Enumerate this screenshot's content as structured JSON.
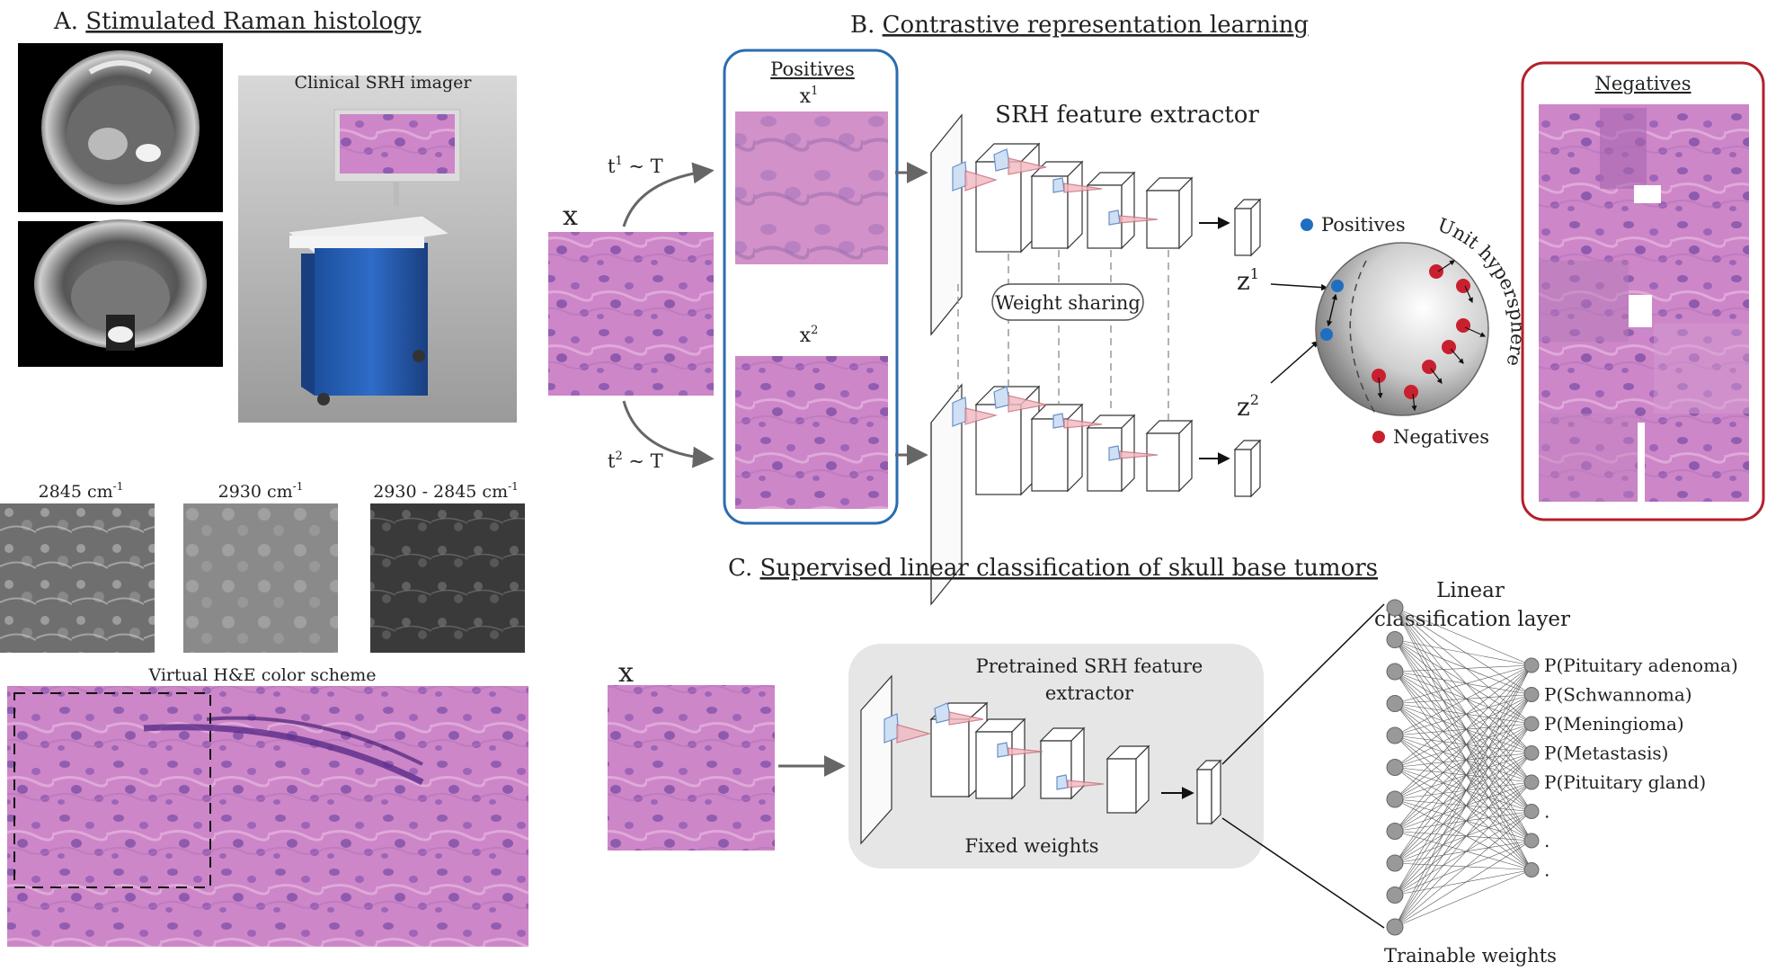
{
  "panelA": {
    "title_letter": "A.",
    "title": "Stimulated Raman histology",
    "imager_label": "Clinical SRH imager",
    "channels": [
      {
        "label": "2845 cm",
        "sup": "-1"
      },
      {
        "label": "2930 cm",
        "sup": "-1"
      },
      {
        "label": "2930 - 2845 cm",
        "sup": "-1"
      }
    ],
    "he_label": "Virtual H&E color scheme"
  },
  "panelB": {
    "title_letter": "B.",
    "title": "Contrastive representation learning",
    "positives_title": "Positives",
    "negatives_title": "Negatives",
    "x_label": "x",
    "x1_label": "x",
    "x1_sup": "1",
    "x2_label": "x",
    "x2_sup": "2",
    "t1_label": "t",
    "t1_sup": "1",
    "t1_rest": " ~ T",
    "t2_label": "t",
    "t2_sup": "2",
    "t2_rest": " ~ T",
    "extractor_label": "SRH feature extractor",
    "weight_sharing": "Weight sharing",
    "z1_label": "z",
    "z1_sup": "1",
    "z2_label": "z",
    "z2_sup": "2",
    "legend_positives": "Positives",
    "legend_negatives": "Negatives",
    "hypersphere_label": "Unit hypersphere"
  },
  "panelC": {
    "title_letter": "C.",
    "title": "Supervised linear classification of skull base tumors",
    "x_label": "x",
    "pretrained_line1": "Pretrained SRH feature",
    "pretrained_line2": "extractor",
    "fixed_weights": "Fixed weights",
    "linear_line1": "Linear",
    "linear_line2": "classification layer",
    "trainable_weights": "Trainable weights",
    "outputs": [
      "P(Pituitary adenoma)",
      "P(Schwannoma)",
      "P(Meningioma)",
      "P(Metastasis)",
      "P(Pituitary gland)",
      ".",
      ".",
      "."
    ]
  },
  "colors": {
    "positives_border": "#2b6cb0",
    "negatives_border": "#b3202a",
    "positive_dot": "#1f6fc0",
    "negative_dot": "#c8202f",
    "tissue_base": "#c77fc2",
    "gray_box": "#e6e6e6"
  }
}
